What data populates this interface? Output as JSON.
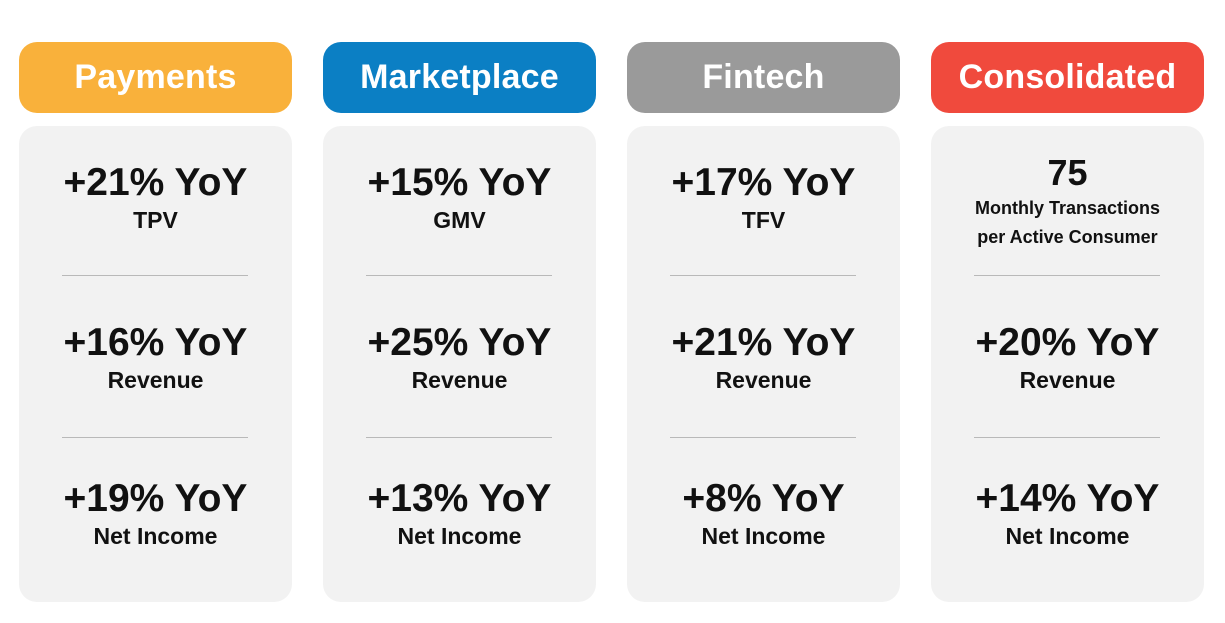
{
  "colors": {
    "payments": "#f9b13b",
    "marketplace": "#0b7fc4",
    "fintech": "#9a9a9a",
    "consolidated": "#f04a3d",
    "card_bg": "#f2f2f2"
  },
  "columns": [
    {
      "title": "Payments",
      "metrics": [
        {
          "value": "+21% YoY",
          "label": "TPV"
        },
        {
          "value": "+16% YoY",
          "label": "Revenue"
        },
        {
          "value": "+19% YoY",
          "label": "Net Income"
        }
      ]
    },
    {
      "title": "Marketplace",
      "metrics": [
        {
          "value": "+15% YoY",
          "label": "GMV"
        },
        {
          "value": "+25% YoY",
          "label": "Revenue"
        },
        {
          "value": "+13% YoY",
          "label": "Net Income"
        }
      ]
    },
    {
      "title": "Fintech",
      "metrics": [
        {
          "value": "+17% YoY",
          "label": "TFV"
        },
        {
          "value": "+21% YoY",
          "label": "Revenue"
        },
        {
          "value": "+8% YoY",
          "label": "Net Income"
        }
      ]
    },
    {
      "title": "Consolidated",
      "metrics": [
        {
          "value": "75",
          "label_line1": "Monthly Transactions",
          "label_line2": "per Active Consumer"
        },
        {
          "value": "+20% YoY",
          "label": "Revenue"
        },
        {
          "value": "+14% YoY",
          "label": "Net Income"
        }
      ]
    }
  ]
}
